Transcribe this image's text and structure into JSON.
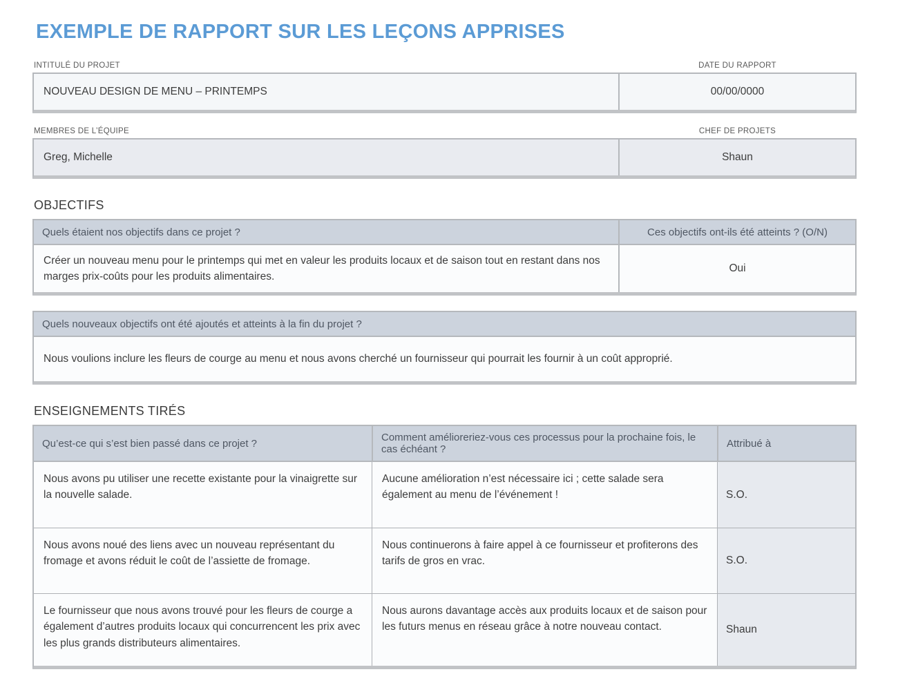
{
  "page": {
    "title": "EXEMPLE DE RAPPORT SUR LES LEÇONS APPRISES"
  },
  "colors": {
    "title_accent": "#5b9bd5",
    "table_header_fill": "#ccd3dd",
    "field_fill_light": "#f5f7f9",
    "field_fill_gray": "#e9ebf0",
    "tag_column_fill": "#e7eaef",
    "border_gray": "#b5b8bc"
  },
  "project_info": {
    "project_title": {
      "label": "INTITULÉ DU PROJET",
      "value": "NOUVEAU DESIGN DE MENU – PRINTEMPS"
    },
    "report_date": {
      "label": "DATE DU RAPPORT",
      "value": "00/00/0000"
    },
    "team_members": {
      "label": "MEMBRES DE L’ÉQUIPE",
      "value": "Greg, Michelle"
    },
    "project_manager": {
      "label": "CHEF DE PROJETS",
      "value": "Shaun"
    }
  },
  "objectives": {
    "heading": "OBJECTIFS",
    "table1": {
      "question_header": "Quels étaient nos objectifs dans ce projet ?",
      "answer_header": "Ces objectifs ont-ils été atteints ?  (O/N)",
      "question_answer": "Créer un nouveau menu pour le printemps qui met en valeur les produits locaux et de saison tout en restant dans nos marges prix-coûts pour les produits alimentaires.",
      "achieved": "Oui"
    },
    "table2": {
      "header": "Quels nouveaux objectifs ont été ajoutés et atteints à la fin du projet ?",
      "answer": "Nous voulions inclure les fleurs de courge au menu et nous avons cherché un fournisseur qui pourrait les fournir à un coût approprié."
    }
  },
  "lessons": {
    "heading": "ENSEIGNEMENTS TIRÉS",
    "columns": {
      "went_well": "Qu’est-ce qui s’est bien passé dans ce projet ?",
      "improve": "Comment amélioreriez-vous ces processus pour la prochaine fois, le cas échéant ?",
      "attributed": "Attribué à"
    },
    "rows": [
      {
        "went_well": "Nous avons pu utiliser une recette existante pour la vinaigrette sur la nouvelle salade.",
        "improve": "Aucune amélioration n’est nécessaire ici ; cette salade sera également au menu de l’événement !",
        "attributed": "S.O."
      },
      {
        "went_well": "Nous avons noué des liens avec un nouveau représentant du fromage et avons réduit le coût de l’assiette de fromage.",
        "improve": "Nous continuerons à faire appel à ce fournisseur et profiterons des tarifs de gros en vrac.",
        "attributed": "S.O."
      },
      {
        "went_well": "Le fournisseur que nous avons trouvé pour les fleurs de courge a également d’autres produits locaux qui concurrencent les prix avec les plus grands distributeurs alimentaires.",
        "improve": "Nous aurons davantage accès aux produits locaux et de saison pour les futurs menus en réseau grâce à notre nouveau contact.",
        "attributed": "Shaun"
      }
    ]
  }
}
